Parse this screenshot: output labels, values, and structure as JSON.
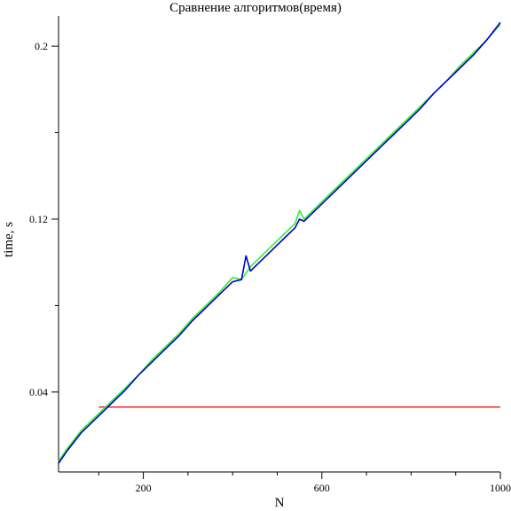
{
  "chart_data": {
    "type": "line",
    "title": "Сравнение алгоритмов(время)",
    "xlabel": "N",
    "ylabel": "time, s",
    "xlim": [
      10,
      1000
    ],
    "ylim": [
      0.003,
      0.214
    ],
    "x_major_ticks": [
      200,
      600,
      1000
    ],
    "x_minor_ticks": [
      100,
      300,
      400,
      500,
      700,
      800,
      900
    ],
    "y_major_ticks": [
      0.04,
      0.12,
      0.2
    ],
    "y_minor_ticks": [
      0.08,
      0.16
    ],
    "x_tick_labels": [
      "200",
      "600",
      "1000"
    ],
    "y_tick_labels": [
      "0.04",
      "0.12",
      "0.2"
    ],
    "grid": false,
    "legend": "none",
    "series": [
      {
        "color": "#ff0000",
        "x": [
          100,
          1000
        ],
        "y": [
          0.033,
          0.033
        ]
      },
      {
        "color": "#33ee33",
        "x": [
          10,
          30,
          60,
          100,
          130,
          160,
          190,
          220,
          250,
          280,
          310,
          340,
          370,
          400,
          420,
          440,
          460,
          490,
          520,
          540,
          550,
          560,
          580,
          610,
          640,
          670,
          700,
          730,
          760,
          790,
          820,
          850,
          880,
          910,
          940,
          970,
          1000
        ],
        "y": [
          0.008,
          0.014,
          0.022,
          0.03,
          0.036,
          0.042,
          0.048,
          0.055,
          0.061,
          0.067,
          0.074,
          0.08,
          0.086,
          0.093,
          0.092,
          0.098,
          0.102,
          0.108,
          0.114,
          0.118,
          0.124,
          0.12,
          0.124,
          0.13,
          0.136,
          0.142,
          0.148,
          0.154,
          0.16,
          0.166,
          0.172,
          0.178,
          0.184,
          0.191,
          0.197,
          0.203,
          0.21
        ]
      },
      {
        "color": "#0000cc",
        "x": [
          10,
          30,
          60,
          100,
          130,
          160,
          190,
          220,
          250,
          280,
          310,
          340,
          370,
          400,
          420,
          430,
          440,
          460,
          490,
          520,
          540,
          550,
          560,
          580,
          610,
          640,
          670,
          700,
          730,
          760,
          790,
          820,
          850,
          880,
          910,
          940,
          970,
          1000
        ],
        "y": [
          0.007,
          0.013,
          0.021,
          0.029,
          0.035,
          0.041,
          0.048,
          0.054,
          0.06,
          0.066,
          0.073,
          0.079,
          0.085,
          0.091,
          0.092,
          0.103,
          0.096,
          0.1,
          0.106,
          0.112,
          0.116,
          0.12,
          0.119,
          0.123,
          0.129,
          0.135,
          0.141,
          0.147,
          0.153,
          0.159,
          0.165,
          0.171,
          0.178,
          0.184,
          0.19,
          0.196,
          0.203,
          0.211
        ]
      }
    ]
  }
}
